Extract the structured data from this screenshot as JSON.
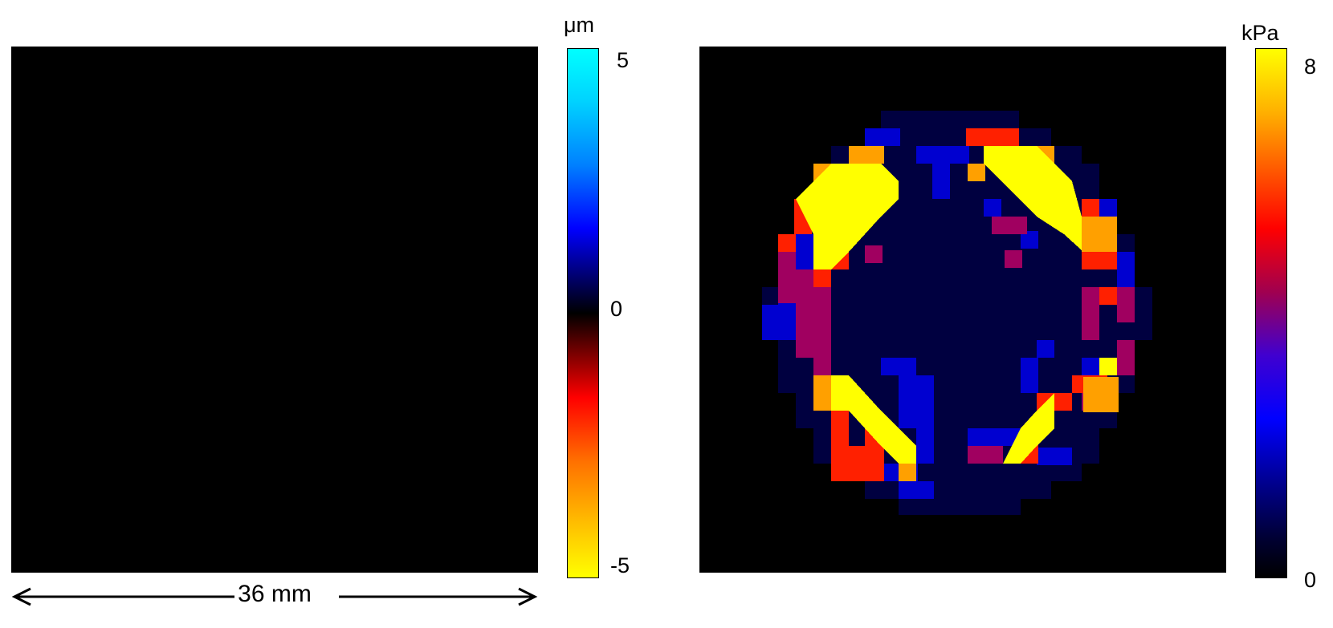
{
  "left_colorbar": {
    "unit": "μm",
    "ticks": [
      "5",
      "0",
      "-5"
    ],
    "colors": [
      "#00ffff",
      "#0000ff",
      "#000000",
      "#ff0000",
      "#ffff00"
    ]
  },
  "right_colorbar": {
    "unit": "kPa",
    "ticks": [
      "8",
      "0"
    ],
    "colors": [
      "#ffff00",
      "#ff0000",
      "#0000ff",
      "#000000"
    ]
  },
  "scale_bar": {
    "label": "36 mm"
  }
}
